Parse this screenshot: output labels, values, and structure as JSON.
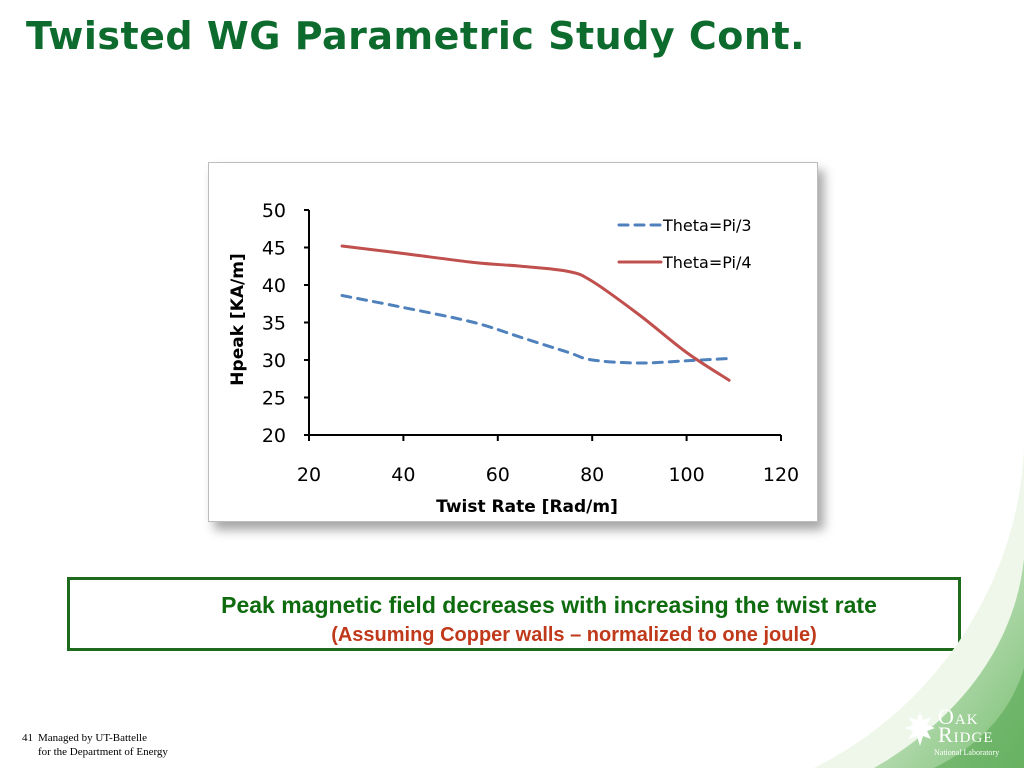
{
  "slide": {
    "title": "Twisted WG Parametric Study Cont.",
    "note_line1": "Peak magnetic field decreases with increasing the twist rate",
    "note_line2": "(Assuming Copper walls – normalized to one joule)",
    "page_number": "41",
    "footer_line1": "Managed by UT-Battelle",
    "footer_line2": "for the Department of Energy",
    "logo_line1": "Oak",
    "logo_line2": "Ridge",
    "logo_line3": "National Laboratory",
    "colors": {
      "title": "#0e6b2e",
      "note_green": "#0e6b0e",
      "note_red": "#c0391b",
      "swoosh": "#8fc98a"
    }
  },
  "chart_data": {
    "type": "line",
    "xlabel": "Twist Rate [Rad/m]",
    "ylabel": "Hpeak  [KA/m]",
    "xlim": [
      20,
      120
    ],
    "ylim": [
      20,
      50
    ],
    "xticks": [
      "20",
      "40",
      "60",
      "80",
      "100",
      "120"
    ],
    "yticks": [
      "20",
      "25",
      "30",
      "35",
      "40",
      "45",
      "50"
    ],
    "legend_position": "top-right",
    "grid": false,
    "series": [
      {
        "name": "Theta=Pi/3",
        "color": "#4f81bd",
        "dash": "dashed",
        "x": [
          27,
          40,
          55,
          65,
          75,
          80,
          90,
          100,
          109
        ],
        "y": [
          38.6,
          37.0,
          35.0,
          33.0,
          31.0,
          30.0,
          29.6,
          29.9,
          30.2
        ]
      },
      {
        "name": "Theta=Pi/4",
        "color": "#c0504d",
        "dash": "solid",
        "x": [
          27,
          40,
          55,
          65,
          75,
          80,
          90,
          100,
          109
        ],
        "y": [
          45.2,
          44.2,
          43.0,
          42.5,
          41.8,
          40.5,
          36.0,
          31.0,
          27.3
        ]
      }
    ]
  }
}
